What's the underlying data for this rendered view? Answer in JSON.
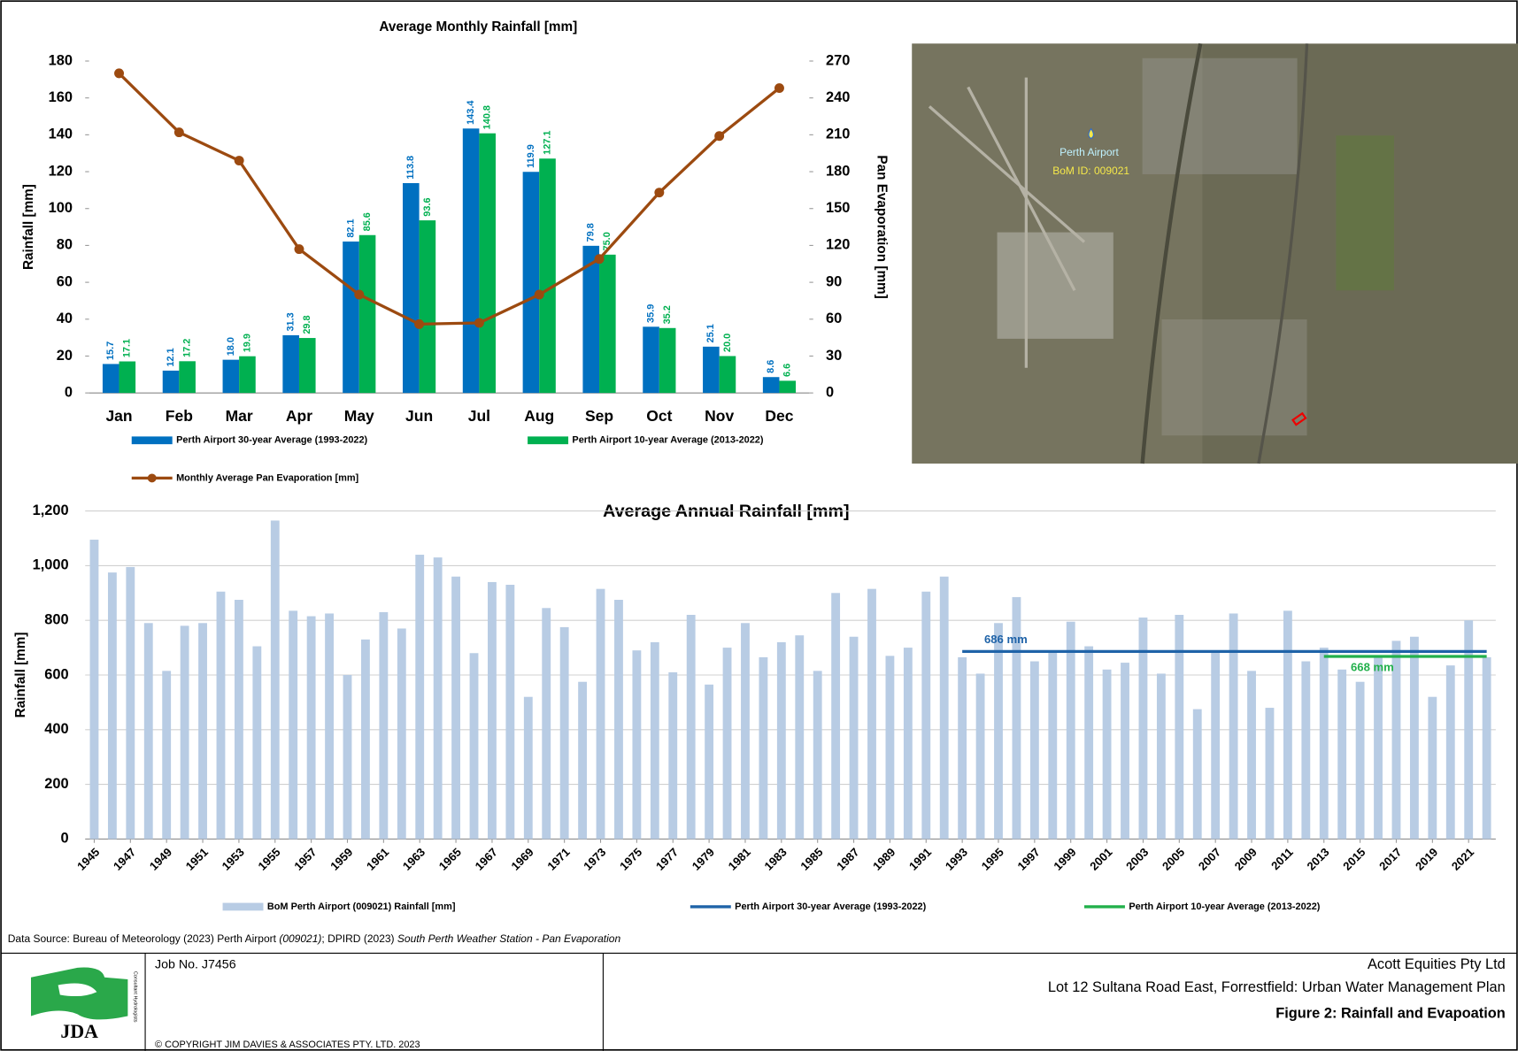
{
  "chart_data": [
    {
      "type": "bar",
      "title": "Average Monthly Rainfall [mm]",
      "y_label": "Rainfall [mm]",
      "y2_label": "Pan Evaporation [mm]",
      "categories": [
        "Jan",
        "Feb",
        "Mar",
        "Apr",
        "May",
        "Jun",
        "Jul",
        "Aug",
        "Sep",
        "Oct",
        "Nov",
        "Dec"
      ],
      "ylim": [
        0,
        180
      ],
      "yticks": [
        0,
        20,
        40,
        60,
        80,
        100,
        120,
        140,
        160,
        180
      ],
      "y2lim": [
        0,
        270
      ],
      "y2ticks": [
        0,
        30,
        60,
        90,
        120,
        150,
        180,
        210,
        240,
        270
      ],
      "grid": false,
      "series": [
        {
          "name": "Perth Airport 30-year Average (1993-2022)",
          "color": "#0070c0",
          "mark": "bar",
          "values": [
            15.7,
            12.1,
            18.0,
            31.3,
            82.1,
            113.8,
            143.4,
            119.9,
            79.8,
            35.9,
            25.1,
            8.6
          ],
          "value_labels": [
            "15.7",
            "12.1",
            "18.0",
            "31.3",
            "82.1",
            "113.8",
            "143.4",
            "119.9",
            "79.8",
            "35.9",
            "25.1",
            "8.6"
          ]
        },
        {
          "name": "Perth Airport 10-year Average (2013-2022)",
          "color": "#00b050",
          "mark": "bar",
          "values": [
            17.1,
            17.2,
            19.9,
            29.8,
            85.6,
            93.6,
            140.8,
            127.1,
            75.0,
            35.2,
            20.0,
            6.6
          ],
          "value_labels": [
            "17.1",
            "17.2",
            "19.9",
            "29.8",
            "85.6",
            "93.6",
            "140.8",
            "127.1",
            "75.0",
            "35.2",
            "20.0",
            "6.6"
          ]
        },
        {
          "name": "Monthly Average Pan Evaporation [mm]",
          "color": "#9c4a10",
          "mark": "line",
          "axis": "y2",
          "values": [
            260,
            212,
            189,
            117,
            80,
            56,
            57,
            80,
            109,
            163,
            209,
            248
          ]
        }
      ]
    },
    {
      "type": "bar",
      "title": "Average Annual Rainfall [mm]",
      "y_label": "Rainfall [mm]",
      "x": [
        1945,
        1946,
        1947,
        1948,
        1949,
        1950,
        1951,
        1952,
        1953,
        1954,
        1955,
        1956,
        1957,
        1958,
        1959,
        1960,
        1961,
        1962,
        1963,
        1964,
        1965,
        1966,
        1967,
        1968,
        1969,
        1970,
        1971,
        1972,
        1973,
        1974,
        1975,
        1976,
        1977,
        1978,
        1979,
        1980,
        1981,
        1982,
        1983,
        1984,
        1985,
        1986,
        1987,
        1988,
        1989,
        1990,
        1991,
        1992,
        1993,
        1994,
        1995,
        1996,
        1997,
        1998,
        1999,
        2000,
        2001,
        2002,
        2003,
        2004,
        2005,
        2006,
        2007,
        2008,
        2009,
        2010,
        2011,
        2012,
        2013,
        2014,
        2015,
        2016,
        2017,
        2018,
        2019,
        2020,
        2021,
        2022
      ],
      "xlim": [
        1944.5,
        2022.5
      ],
      "xticks": [
        1945,
        1947,
        1949,
        1951,
        1953,
        1955,
        1957,
        1959,
        1961,
        1963,
        1965,
        1967,
        1969,
        1971,
        1973,
        1975,
        1977,
        1979,
        1981,
        1983,
        1985,
        1987,
        1989,
        1991,
        1993,
        1995,
        1997,
        1999,
        2001,
        2003,
        2005,
        2007,
        2009,
        2011,
        2013,
        2015,
        2017,
        2019,
        2021
      ],
      "ylim": [
        0,
        1200
      ],
      "yticks": [
        0,
        200,
        400,
        600,
        800,
        {
          "value": 1000,
          "label": "1,000"
        },
        {
          "value": 1200,
          "label": "1,200"
        }
      ],
      "grid": true,
      "series": [
        {
          "name": "BoM Perth Airport (009021) Rainfall [mm]",
          "color": "#b8cce4",
          "mark": "bar",
          "values": [
            1095,
            975,
            995,
            790,
            615,
            780,
            790,
            905,
            875,
            705,
            1165,
            835,
            815,
            825,
            600,
            730,
            830,
            770,
            1040,
            1030,
            960,
            680,
            940,
            930,
            520,
            845,
            775,
            575,
            915,
            875,
            690,
            720,
            610,
            820,
            565,
            700,
            790,
            665,
            720,
            745,
            615,
            900,
            740,
            915,
            670,
            700,
            905,
            960,
            665,
            605,
            790,
            885,
            650,
            690,
            795,
            705,
            620,
            645,
            810,
            605,
            820,
            475,
            690,
            825,
            615,
            480,
            835,
            650,
            700,
            620,
            575,
            670,
            725,
            740,
            520,
            635,
            800,
            665
          ]
        },
        {
          "name": "Perth Airport 30-year Average (1993-2022)",
          "color": "#1f63a8",
          "mark": "line",
          "label": "686 mm",
          "values": [
            null,
            null,
            null,
            null,
            null,
            null,
            null,
            null,
            null,
            null,
            null,
            null,
            null,
            null,
            null,
            null,
            null,
            null,
            null,
            null,
            null,
            null,
            null,
            null,
            null,
            null,
            null,
            null,
            null,
            null,
            null,
            null,
            null,
            null,
            null,
            null,
            null,
            null,
            null,
            null,
            null,
            null,
            null,
            null,
            null,
            null,
            null,
            null,
            686,
            686,
            686,
            686,
            686,
            686,
            686,
            686,
            686,
            686,
            686,
            686,
            686,
            686,
            686,
            686,
            686,
            686,
            686,
            686,
            686,
            686,
            686,
            686,
            686,
            686,
            686,
            686,
            686,
            686
          ]
        },
        {
          "name": "Perth Airport 10-year Average (2013-2022)",
          "color": "#22b04b",
          "mark": "line",
          "label": "668 mm",
          "values": [
            null,
            null,
            null,
            null,
            null,
            null,
            null,
            null,
            null,
            null,
            null,
            null,
            null,
            null,
            null,
            null,
            null,
            null,
            null,
            null,
            null,
            null,
            null,
            null,
            null,
            null,
            null,
            null,
            null,
            null,
            null,
            null,
            null,
            null,
            null,
            null,
            null,
            null,
            null,
            null,
            null,
            null,
            null,
            null,
            null,
            null,
            null,
            null,
            null,
            null,
            null,
            null,
            null,
            null,
            null,
            null,
            null,
            null,
            null,
            null,
            null,
            null,
            null,
            null,
            null,
            null,
            null,
            null,
            668,
            668,
            668,
            668,
            668,
            668,
            668,
            668,
            668,
            668
          ]
        }
      ]
    }
  ],
  "map": {
    "station": "Perth Airport",
    "station_id": "BoM ID: 009021"
  },
  "source": [
    "Data Source: Bureau of Meteorology (2023) Perth Airport ",
    "(009021)",
    "; DPIRD (2023) ",
    "South Perth  Weather Station - Pan Evaporation"
  ],
  "footer": {
    "job": "Job No.  J7456",
    "copyright": "© COPYRIGHT JIM DAVIES & ASSOCIATES PTY. LTD. 2023",
    "logo": "JDA",
    "logo_sub": "Consultant Hydrologists",
    "client": "Acott Equities Pty Ltd",
    "project": "Lot 12 Sultana Road East, Forrestfield: Urban Water Management Plan",
    "figure": "Figure 2: Rainfall and Evapoation"
  }
}
